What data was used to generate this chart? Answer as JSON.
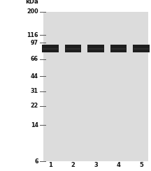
{
  "kda_label": "kDa",
  "mw_markers": [
    200,
    116,
    97,
    66,
    44,
    31,
    22,
    14,
    6
  ],
  "n_lanes": 5,
  "lane_labels": [
    "1",
    "2",
    "3",
    "4",
    "5"
  ],
  "band_mw": 84,
  "band_color": "#1e1e1e",
  "gel_bg_color": "#dcdcdc",
  "marker_line_color": "#555555",
  "text_color": "#111111",
  "background_color": "#ffffff",
  "font_size_markers": 5.8,
  "font_size_kda": 6.2,
  "font_size_lane": 6.0
}
